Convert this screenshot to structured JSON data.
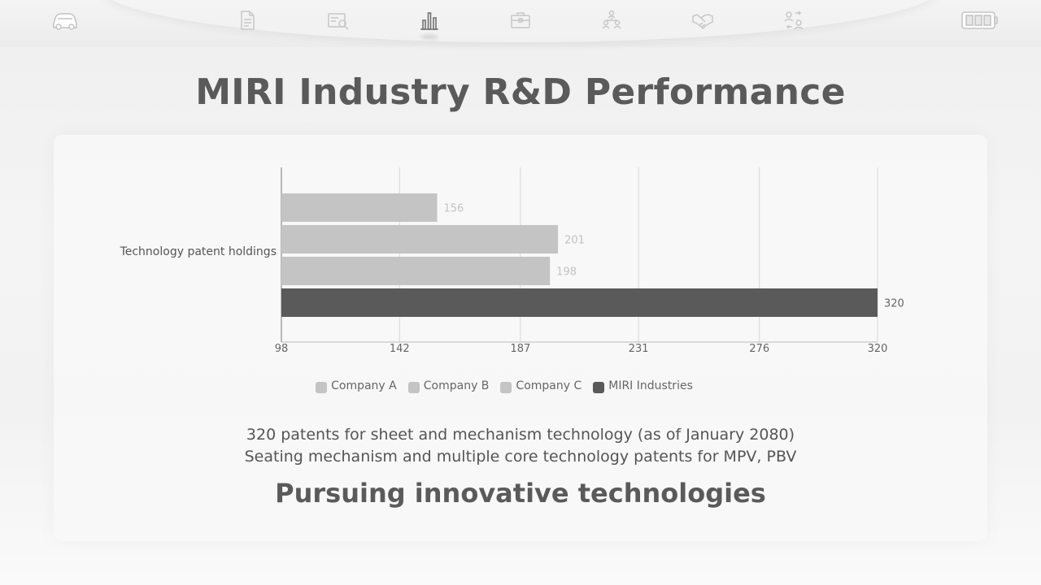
{
  "nav": {
    "icons": [
      {
        "name": "car-icon",
        "active": false
      },
      {
        "name": "document-icon",
        "active": false
      },
      {
        "name": "report-search-icon",
        "active": false
      },
      {
        "name": "bar-chart-icon",
        "active": true
      },
      {
        "name": "briefcase-icon",
        "active": false
      },
      {
        "name": "organization-icon",
        "active": false
      },
      {
        "name": "handshake-icon",
        "active": false
      },
      {
        "name": "people-exchange-icon",
        "active": false
      },
      {
        "name": "battery-icon",
        "active": false
      }
    ]
  },
  "title": "MIRI Industry R&D Performance",
  "chart_data": {
    "type": "bar",
    "orientation": "horizontal",
    "categories": [
      "Technology patent holdings"
    ],
    "series": [
      {
        "name": "Company A",
        "values": [
          156
        ],
        "color": "#c4c4c4"
      },
      {
        "name": "Company B",
        "values": [
          201
        ],
        "color": "#c4c4c4"
      },
      {
        "name": "Company C",
        "values": [
          198
        ],
        "color": "#c4c4c4"
      },
      {
        "name": "MIRI Industries",
        "values": [
          320
        ],
        "color": "#5a5a5a"
      }
    ],
    "xlim": [
      98,
      320
    ],
    "xticks": [
      "98",
      "142",
      "187",
      "231",
      "276",
      "320"
    ],
    "grid": true,
    "legend": "bottom",
    "label_colors": {
      "muted": "#c2c2c2",
      "highlight": "#666666"
    }
  },
  "description": {
    "line1": "320 patents for sheet and mechanism technology (as of January 2080)",
    "line2": "Seating mechanism and multiple core technology patents for MPV, PBV"
  },
  "tagline": "Pursuing innovative technologies"
}
